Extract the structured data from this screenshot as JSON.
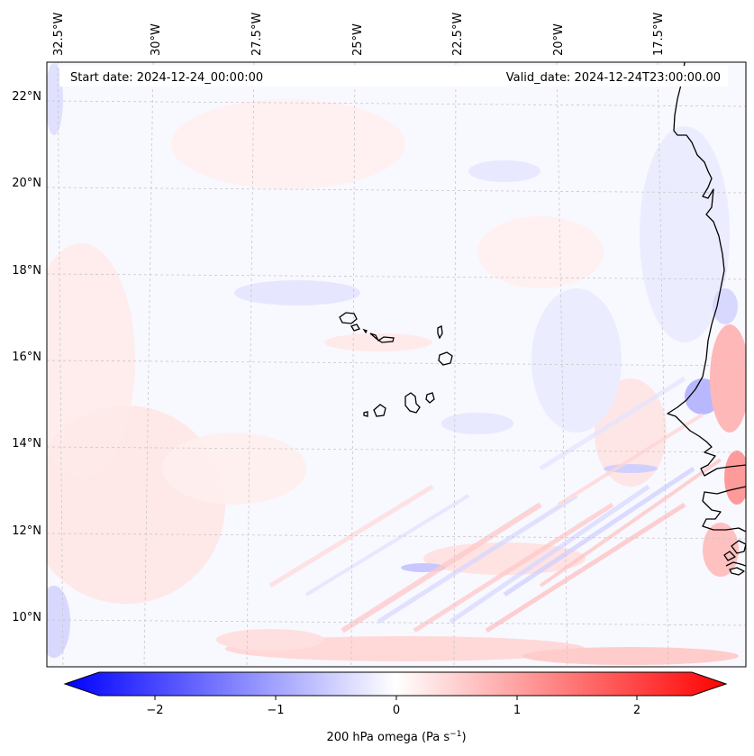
{
  "header": {
    "start_date": "Start date: 2024-12-24_00:00:00",
    "valid_date": "Valid_date: 2024-12-24T23:00:00.00"
  },
  "longitude_labels": [
    "32.5°W",
    "30°W",
    "27.5°W",
    "25°W",
    "22.5°W",
    "20°W",
    "17.5°W"
  ],
  "latitude_labels": [
    "22°N",
    "20°N",
    "18°N",
    "16°N",
    "14°N",
    "12°N",
    "10°N"
  ],
  "colorbar": {
    "ticks": [
      "−2",
      "−1",
      "0",
      "1",
      "2"
    ],
    "label_main": "200 hPa omega (Pa s",
    "label_sup": "−1",
    "label_end": ")",
    "color_min": "#0000ff",
    "color_mid": "#ffffff",
    "color_max": "#ff0000"
  },
  "colors": {
    "field_background": "#f8f8ff",
    "coastline": "#000000",
    "gridline": "#c8c8c8"
  }
}
